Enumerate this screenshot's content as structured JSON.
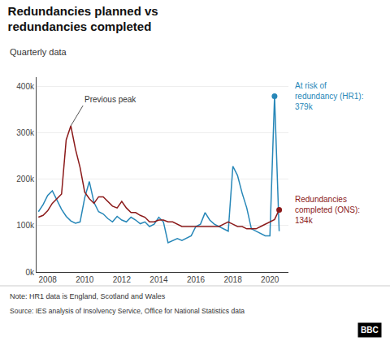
{
  "chart_data": {
    "type": "line",
    "title": "Redundancies planned vs\nredundancies completed",
    "subtitle": "Quarterly data",
    "x": [
      2007.5,
      2007.75,
      2008.0,
      2008.25,
      2008.5,
      2008.75,
      2009.0,
      2009.25,
      2009.5,
      2009.75,
      2010.0,
      2010.25,
      2010.5,
      2010.75,
      2011.0,
      2011.25,
      2011.5,
      2011.75,
      2012.0,
      2012.25,
      2012.5,
      2012.75,
      2013.0,
      2013.25,
      2013.5,
      2013.75,
      2014.0,
      2014.25,
      2014.5,
      2014.75,
      2015.0,
      2015.25,
      2015.5,
      2015.75,
      2016.0,
      2016.25,
      2016.5,
      2016.75,
      2017.0,
      2017.25,
      2017.5,
      2017.75,
      2018.0,
      2018.25,
      2018.5,
      2018.75,
      2019.0,
      2019.25,
      2019.5,
      2019.75,
      2020.0,
      2020.25,
      2020.5
    ],
    "series": [
      {
        "color": "#2787b8",
        "values": [
          130000,
          145000,
          165000,
          175000,
          155000,
          135000,
          120000,
          110000,
          105000,
          108000,
          160000,
          195000,
          150000,
          130000,
          125000,
          115000,
          108000,
          120000,
          112000,
          108000,
          118000,
          112000,
          104000,
          108000,
          98000,
          103000,
          118000,
          108000,
          63000,
          68000,
          72000,
          68000,
          73000,
          78000,
          98000,
          103000,
          128000,
          112000,
          103000,
          98000,
          93000,
          88000,
          228000,
          208000,
          170000,
          138000,
          93000,
          88000,
          83000,
          78000,
          78000,
          379000,
          88000
        ]
      },
      {
        "color": "#8b1a1a",
        "values": [
          118000,
          122000,
          132000,
          148000,
          158000,
          168000,
          285000,
          315000,
          265000,
          225000,
          172000,
          158000,
          148000,
          162000,
          162000,
          152000,
          142000,
          138000,
          152000,
          138000,
          128000,
          128000,
          122000,
          118000,
          108000,
          108000,
          112000,
          112000,
          108000,
          108000,
          103000,
          98000,
          98000,
          98000,
          98000,
          98000,
          98000,
          98000,
          98000,
          98000,
          103000,
          108000,
          103000,
          98000,
          98000,
          93000,
          93000,
          93000,
          98000,
          103000,
          108000,
          113000,
          134000
        ]
      }
    ],
    "xlim": [
      2007.4,
      2021.0
    ],
    "xticks": [
      2008,
      2010,
      2012,
      2014,
      2016,
      2018,
      2020
    ],
    "ylim": [
      0,
      420000
    ],
    "yticks": [
      {
        "value": 0,
        "label": "0k"
      },
      {
        "value": 100000,
        "label": "100k"
      },
      {
        "value": 200000,
        "label": "200k"
      },
      {
        "value": 300000,
        "label": "300k"
      },
      {
        "value": 400000,
        "label": "400k"
      }
    ],
    "grid": "y",
    "annotations": [
      {
        "text": "At risk of\nredundancy (HR1):\n379k",
        "x": 2020.25,
        "y": 379000,
        "color": "#2787b8",
        "marker": "circle"
      },
      {
        "text": "Redundancies\ncompleted (ONS):\n134k",
        "x": 2020.5,
        "y": 134000,
        "color": "#8b1a1a",
        "marker": "circle"
      },
      {
        "text": "Previous peak",
        "x": 2009.25,
        "y": 315000
      }
    ],
    "footer": [
      "Note: HR1 data is England, Scotland and Wales",
      "Source: IES analysis of Insolvency Service, Office for National Statistics data"
    ],
    "logo": "BBC"
  }
}
